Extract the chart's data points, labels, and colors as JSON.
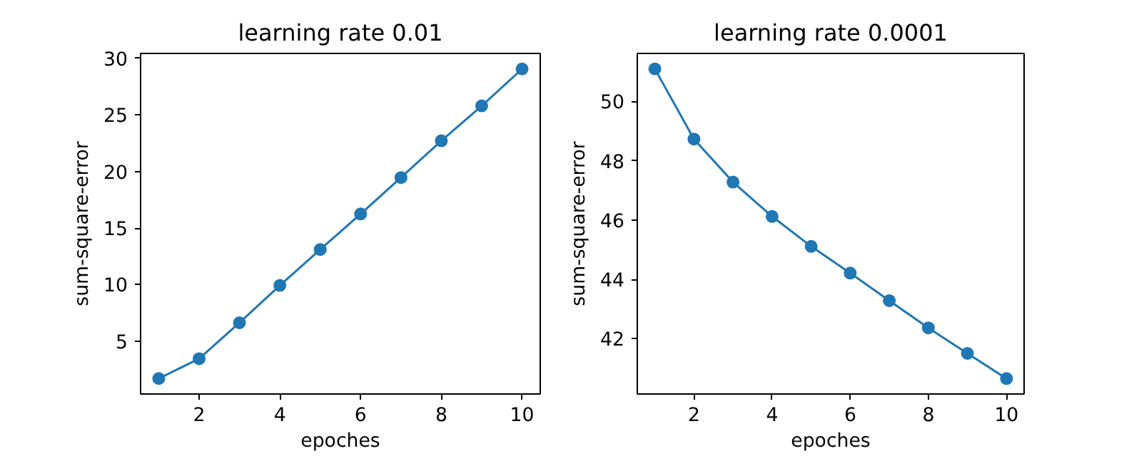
{
  "chart_data": [
    {
      "type": "line",
      "title": "learning rate 0.01",
      "xlabel": "epoches",
      "ylabel": "sum-square-error",
      "x": [
        1,
        2,
        3,
        4,
        5,
        6,
        7,
        8,
        9,
        10
      ],
      "series": [
        {
          "color": "#1f77b4",
          "values": [
            1.7,
            3.45,
            6.63,
            9.93,
            13.1,
            16.24,
            19.46,
            22.71,
            25.8,
            29.06
          ]
        }
      ],
      "xlim": [
        0.55,
        10.45
      ],
      "ylim": [
        0.33,
        30.43
      ],
      "xticks": [
        2,
        4,
        6,
        8,
        10
      ],
      "yticks": [
        5,
        10,
        15,
        20,
        25,
        30
      ],
      "marker": "circle",
      "line_style": "solid",
      "grid": false
    },
    {
      "type": "line",
      "title": "learning rate 0.0001",
      "xlabel": "epoches",
      "ylabel": "sum-square-error",
      "x": [
        1,
        2,
        3,
        4,
        5,
        6,
        7,
        8,
        9,
        10
      ],
      "series": [
        {
          "color": "#1f77b4",
          "values": [
            51.1,
            48.73,
            47.28,
            46.12,
            45.11,
            44.21,
            43.28,
            42.36,
            41.5,
            40.65
          ]
        }
      ],
      "xlim": [
        0.55,
        10.45
      ],
      "ylim": [
        40.13,
        51.62
      ],
      "xticks": [
        2,
        4,
        6,
        8,
        10
      ],
      "yticks": [
        42,
        44,
        46,
        48,
        50
      ],
      "marker": "circle",
      "line_style": "solid",
      "grid": false
    }
  ]
}
